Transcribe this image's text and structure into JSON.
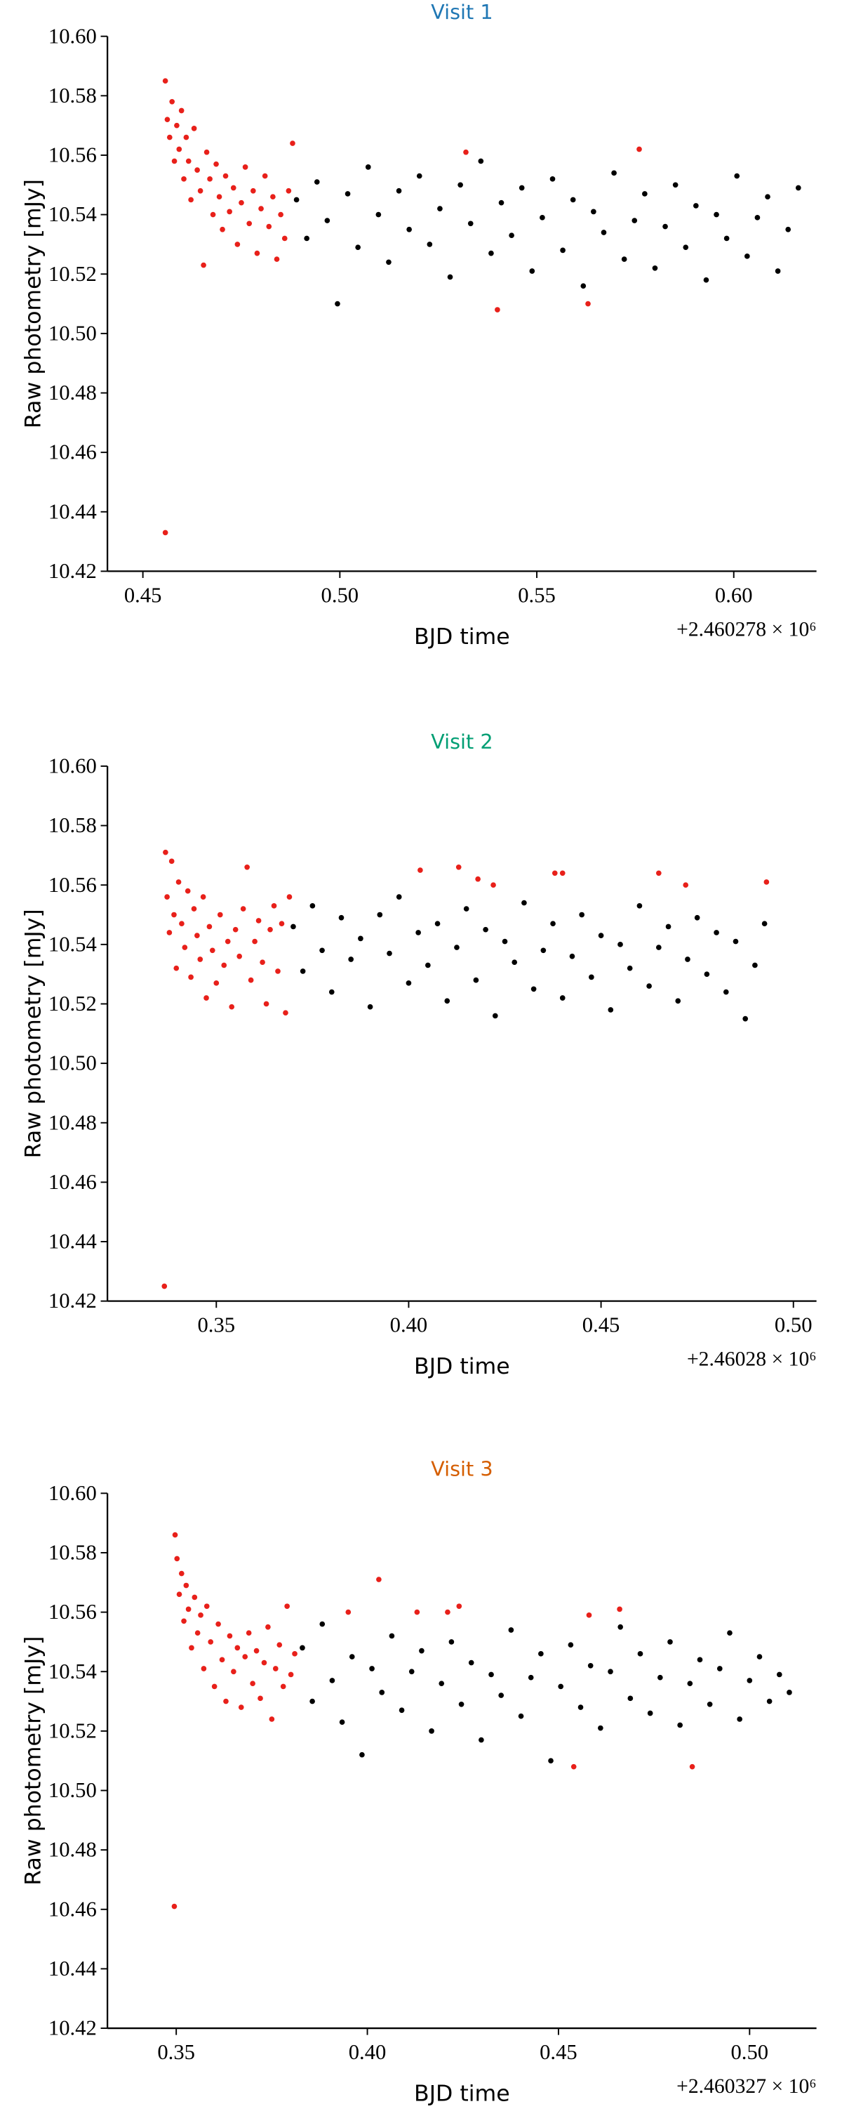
{
  "chart_data": [
    {
      "type": "scatter",
      "title": "Visit 1",
      "title_color": "#1f77b4",
      "xlabel": "BJD time",
      "ylabel": "Raw photometry [mJy]",
      "offset_text": "+2.460278 × 10⁶",
      "xlim": [
        0.441,
        0.621
      ],
      "ylim": [
        10.42,
        10.6
      ],
      "xticks": [
        0.45,
        {
          "value": 0.5,
          "label": "0.50"
        },
        0.55,
        {
          "value": 0.6,
          "label": "0.60"
        }
      ],
      "yticks": [
        10.42,
        10.44,
        10.46,
        10.48,
        {
          "value": 10.5,
          "label": "10.50"
        },
        10.52,
        10.54,
        10.56,
        10.58,
        {
          "value": 10.6,
          "label": "10.60"
        }
      ],
      "series": [
        {
          "color": "#000000",
          "x": [
            0.489,
            0.4916,
            0.4942,
            0.4968,
            0.4994,
            0.502,
            0.5046,
            0.5072,
            0.5098,
            0.5124,
            0.515,
            0.5176,
            0.5202,
            0.5228,
            0.5254,
            0.528,
            0.5306,
            0.5332,
            0.5358,
            0.5384,
            0.541,
            0.5436,
            0.5462,
            0.5488,
            0.5514,
            0.554,
            0.5566,
            0.5592,
            0.5618,
            0.5644,
            0.567,
            0.5696,
            0.5722,
            0.5748,
            0.5774,
            0.58,
            0.5826,
            0.5852,
            0.5878,
            0.5904,
            0.593,
            0.5956,
            0.5982,
            0.6008,
            0.6034,
            0.606,
            0.6086,
            0.6112,
            0.6138,
            0.6164
          ],
          "values": [
            10.545,
            10.532,
            10.551,
            10.538,
            10.51,
            10.547,
            10.529,
            10.556,
            10.54,
            10.524,
            10.548,
            10.535,
            10.553,
            10.53,
            10.542,
            10.519,
            10.55,
            10.537,
            10.558,
            10.527,
            10.544,
            10.533,
            10.549,
            10.521,
            10.539,
            10.552,
            10.528,
            10.545,
            10.516,
            10.541,
            10.534,
            10.554,
            10.525,
            10.538,
            10.547,
            10.522,
            10.536,
            10.55,
            10.529,
            10.543,
            10.518,
            10.54,
            10.532,
            10.553,
            10.526,
            10.539,
            10.546,
            10.521,
            10.535,
            10.549
          ]
        },
        {
          "color": "#e8201a",
          "x": [
            0.4557,
            0.4557,
            0.4562,
            0.4568,
            0.4574,
            0.458,
            0.4586,
            0.4592,
            0.4598,
            0.4604,
            0.461,
            0.4616,
            0.4622,
            0.463,
            0.4638,
            0.4646,
            0.4654,
            0.4662,
            0.467,
            0.4678,
            0.4686,
            0.4694,
            0.4702,
            0.471,
            0.472,
            0.473,
            0.474,
            0.475,
            0.476,
            0.477,
            0.478,
            0.479,
            0.48,
            0.481,
            0.482,
            0.483,
            0.484,
            0.485,
            0.486,
            0.487,
            0.488,
            0.532,
            0.54,
            0.563,
            0.576
          ],
          "values": [
            10.433,
            10.585,
            10.572,
            10.566,
            10.578,
            10.558,
            10.57,
            10.562,
            10.575,
            10.552,
            10.566,
            10.558,
            10.545,
            10.569,
            10.555,
            10.548,
            10.523,
            10.561,
            10.552,
            10.54,
            10.557,
            10.546,
            10.535,
            10.553,
            10.541,
            10.549,
            10.53,
            10.544,
            10.556,
            10.537,
            10.548,
            10.527,
            10.542,
            10.553,
            10.536,
            10.546,
            10.525,
            10.54,
            10.532,
            10.548,
            10.564,
            10.561,
            10.508,
            10.51,
            10.562
          ]
        }
      ]
    },
    {
      "type": "scatter",
      "title": "Visit 2",
      "title_color": "#009e73",
      "xlabel": "BJD time",
      "ylabel": "Raw photometry [mJy]",
      "offset_text": "+2.46028 × 10⁶",
      "xlim": [
        0.3217,
        0.506
      ],
      "ylim": [
        10.42,
        10.6
      ],
      "xticks": [
        0.35,
        {
          "value": 0.4,
          "label": "0.40"
        },
        0.45,
        {
          "value": 0.5,
          "label": "0.50"
        }
      ],
      "yticks": [
        10.42,
        10.44,
        10.46,
        10.48,
        {
          "value": 10.5,
          "label": "10.50"
        },
        10.52,
        10.54,
        10.56,
        10.58,
        {
          "value": 10.6,
          "label": "10.60"
        }
      ],
      "series": [
        {
          "color": "#000000",
          "x": [
            0.37,
            0.3725,
            0.375,
            0.3775,
            0.38,
            0.3825,
            0.385,
            0.3875,
            0.39,
            0.3925,
            0.395,
            0.3975,
            0.4,
            0.4025,
            0.405,
            0.4075,
            0.41,
            0.4125,
            0.415,
            0.4175,
            0.42,
            0.4225,
            0.425,
            0.4275,
            0.43,
            0.4325,
            0.435,
            0.4375,
            0.44,
            0.4425,
            0.445,
            0.4475,
            0.45,
            0.4525,
            0.455,
            0.4575,
            0.46,
            0.4625,
            0.465,
            0.4675,
            0.47,
            0.4725,
            0.475,
            0.4775,
            0.48,
            0.4825,
            0.485,
            0.4875,
            0.49,
            0.4925
          ],
          "values": [
            10.546,
            10.531,
            10.553,
            10.538,
            10.524,
            10.549,
            10.535,
            10.542,
            10.519,
            10.55,
            10.537,
            10.556,
            10.527,
            10.544,
            10.533,
            10.547,
            10.521,
            10.539,
            10.552,
            10.528,
            10.545,
            10.516,
            10.541,
            10.534,
            10.554,
            10.525,
            10.538,
            10.547,
            10.522,
            10.536,
            10.55,
            10.529,
            10.543,
            10.518,
            10.54,
            10.532,
            10.553,
            10.526,
            10.539,
            10.546,
            10.521,
            10.535,
            10.549,
            10.53,
            10.544,
            10.524,
            10.541,
            10.515,
            10.533,
            10.547
          ]
        },
        {
          "color": "#e8201a",
          "x": [
            0.3365,
            0.3368,
            0.3372,
            0.3378,
            0.3384,
            0.339,
            0.3396,
            0.3402,
            0.341,
            0.3418,
            0.3426,
            0.3434,
            0.3442,
            0.345,
            0.3458,
            0.3466,
            0.3474,
            0.3482,
            0.349,
            0.35,
            0.351,
            0.352,
            0.353,
            0.354,
            0.355,
            0.356,
            0.357,
            0.358,
            0.359,
            0.36,
            0.361,
            0.362,
            0.363,
            0.364,
            0.365,
            0.366,
            0.367,
            0.368,
            0.369,
            0.403,
            0.413,
            0.418,
            0.422,
            0.438,
            0.44,
            0.465,
            0.472,
            0.493
          ],
          "values": [
            10.425,
            10.571,
            10.556,
            10.544,
            10.568,
            10.55,
            10.532,
            10.561,
            10.547,
            10.539,
            10.558,
            10.529,
            10.552,
            10.543,
            10.535,
            10.556,
            10.522,
            10.546,
            10.538,
            10.527,
            10.55,
            10.533,
            10.541,
            10.519,
            10.545,
            10.536,
            10.552,
            10.566,
            10.528,
            10.541,
            10.548,
            10.534,
            10.52,
            10.545,
            10.553,
            10.531,
            10.547,
            10.517,
            10.556,
            10.565,
            10.566,
            10.562,
            10.56,
            10.564,
            10.564,
            10.564,
            10.56,
            10.561
          ]
        }
      ]
    },
    {
      "type": "scatter",
      "title": "Visit 3",
      "title_color": "#d55e00",
      "xlabel": "BJD time",
      "ylabel": "Raw photometry [mJy]",
      "offset_text": "+2.460327 × 10⁶",
      "xlim": [
        0.332,
        0.5175
      ],
      "ylim": [
        10.42,
        10.6
      ],
      "xticks": [
        0.35,
        {
          "value": 0.4,
          "label": "0.40"
        },
        0.45,
        {
          "value": 0.5,
          "label": "0.50"
        }
      ],
      "yticks": [
        10.42,
        10.44,
        10.46,
        10.48,
        {
          "value": 10.5,
          "label": "10.50"
        },
        10.52,
        10.54,
        10.56,
        10.58,
        {
          "value": 10.6,
          "label": "10.60"
        }
      ],
      "series": [
        {
          "color": "#000000",
          "x": [
            0.383,
            0.3856,
            0.3882,
            0.3908,
            0.3934,
            0.396,
            0.3986,
            0.4012,
            0.4038,
            0.4064,
            0.409,
            0.4116,
            0.4142,
            0.4168,
            0.4194,
            0.422,
            0.4246,
            0.4272,
            0.4298,
            0.4324,
            0.435,
            0.4376,
            0.4402,
            0.4428,
            0.4454,
            0.448,
            0.4506,
            0.4532,
            0.4558,
            0.4584,
            0.461,
            0.4636,
            0.4662,
            0.4688,
            0.4714,
            0.474,
            0.4766,
            0.4792,
            0.4818,
            0.4844,
            0.487,
            0.4896,
            0.4922,
            0.4948,
            0.4974,
            0.5,
            0.5026,
            0.5052,
            0.5078,
            0.5104
          ],
          "values": [
            10.548,
            10.53,
            10.556,
            10.537,
            10.523,
            10.545,
            10.512,
            10.541,
            10.533,
            10.552,
            10.527,
            10.54,
            10.547,
            10.52,
            10.536,
            10.55,
            10.529,
            10.543,
            10.517,
            10.539,
            10.532,
            10.554,
            10.525,
            10.538,
            10.546,
            10.51,
            10.535,
            10.549,
            10.528,
            10.542,
            10.521,
            10.54,
            10.555,
            10.531,
            10.546,
            10.526,
            10.538,
            10.55,
            10.522,
            10.536,
            10.544,
            10.529,
            10.541,
            10.553,
            10.524,
            10.537,
            10.545,
            10.53,
            10.539,
            10.533
          ]
        },
        {
          "color": "#e8201a",
          "x": [
            0.3495,
            0.3497,
            0.3502,
            0.3508,
            0.3514,
            0.352,
            0.3526,
            0.3532,
            0.354,
            0.3548,
            0.3556,
            0.3564,
            0.3572,
            0.358,
            0.359,
            0.36,
            0.361,
            0.362,
            0.363,
            0.364,
            0.365,
            0.366,
            0.367,
            0.368,
            0.369,
            0.37,
            0.371,
            0.372,
            0.373,
            0.374,
            0.375,
            0.376,
            0.377,
            0.378,
            0.379,
            0.38,
            0.381,
            0.395,
            0.403,
            0.413,
            0.421,
            0.424,
            0.454,
            0.458,
            0.466,
            0.485
          ],
          "values": [
            10.461,
            10.586,
            10.578,
            10.566,
            10.573,
            10.557,
            10.569,
            10.561,
            10.548,
            10.565,
            10.553,
            10.559,
            10.541,
            10.562,
            10.55,
            10.535,
            10.556,
            10.544,
            10.53,
            10.552,
            10.54,
            10.548,
            10.528,
            10.545,
            10.553,
            10.536,
            10.547,
            10.531,
            10.543,
            10.555,
            10.524,
            10.541,
            10.549,
            10.535,
            10.562,
            10.539,
            10.546,
            10.56,
            10.571,
            10.56,
            10.56,
            10.562,
            10.508,
            10.559,
            10.561,
            10.508
          ]
        }
      ]
    }
  ]
}
